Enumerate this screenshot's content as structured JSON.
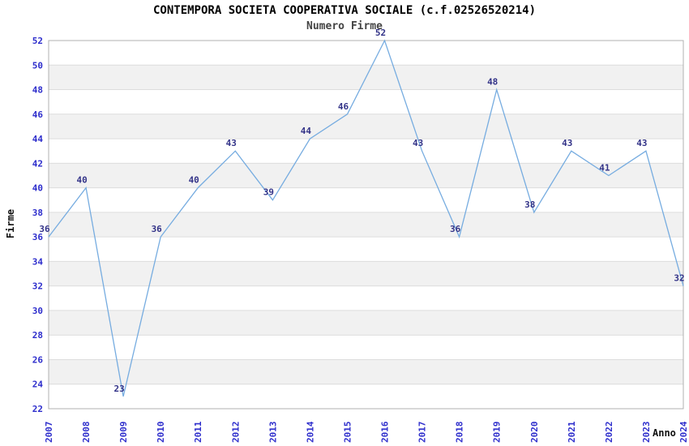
{
  "chart_data": {
    "type": "line",
    "title": "CONTEMPORA SOCIETA COOPERATIVA SOCIALE (c.f.02526520214)",
    "subtitle": "Numero Firme",
    "xlabel": "Anno",
    "ylabel": "Firme",
    "categories": [
      "2007",
      "2008",
      "2009",
      "2010",
      "2011",
      "2012",
      "2013",
      "2014",
      "2015",
      "2016",
      "2017",
      "2018",
      "2019",
      "2020",
      "2021",
      "2022",
      "2023",
      "2024"
    ],
    "values": [
      36,
      40,
      23,
      36,
      40,
      43,
      39,
      44,
      46,
      52,
      43,
      36,
      48,
      38,
      43,
      41,
      43,
      32
    ],
    "ylim": [
      22,
      52
    ],
    "ytick_step": 2,
    "xtick_rotation": -90,
    "grid": true,
    "banded_background": true,
    "legend_position": "none",
    "colors": {
      "line": "#76ACE0",
      "tick_label": "#2E2ECC",
      "data_label": "#333388",
      "band": "#F1F1F1",
      "grid": "#DCDCDC",
      "border": "#B0B0B0",
      "title": "#000000",
      "subtitle": "#444444",
      "background": "#FFFFFF"
    }
  }
}
